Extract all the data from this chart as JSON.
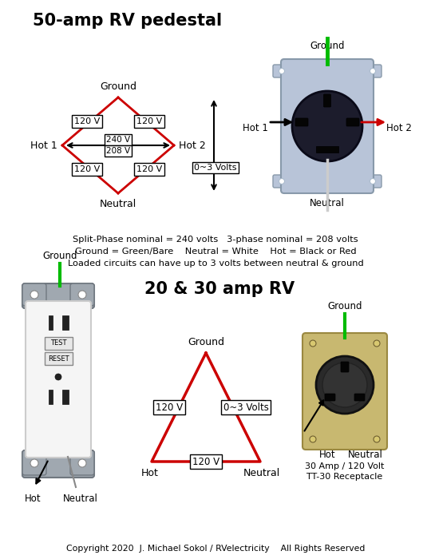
{
  "bg_color": "#ffffff",
  "title_50": "50-amp RV pedestal",
  "title_2030": "20 & 30 amp RV",
  "copyright": "Copyright 2020  J. Michael Sokol / RVelectricity    All Rights Reserved",
  "info_lines": [
    "Split-Phase nominal = 240 volts   3-phase nominal = 208 volts",
    "Ground = Green/Bare    Neutral = White    Hot = Black or Red",
    "Loaded circuits can have up to 3 volts between neutral & ground"
  ],
  "diamond_color": "#cc0000",
  "triangle_color": "#cc0000",
  "green_color": "#00bb00",
  "red_color": "#cc0000",
  "plate_color": "#b8c4d8",
  "plate_edge": "#8899aa",
  "face_color": "#1a1a2a",
  "tan_color": "#c8b870",
  "tan_edge": "#9a8840"
}
